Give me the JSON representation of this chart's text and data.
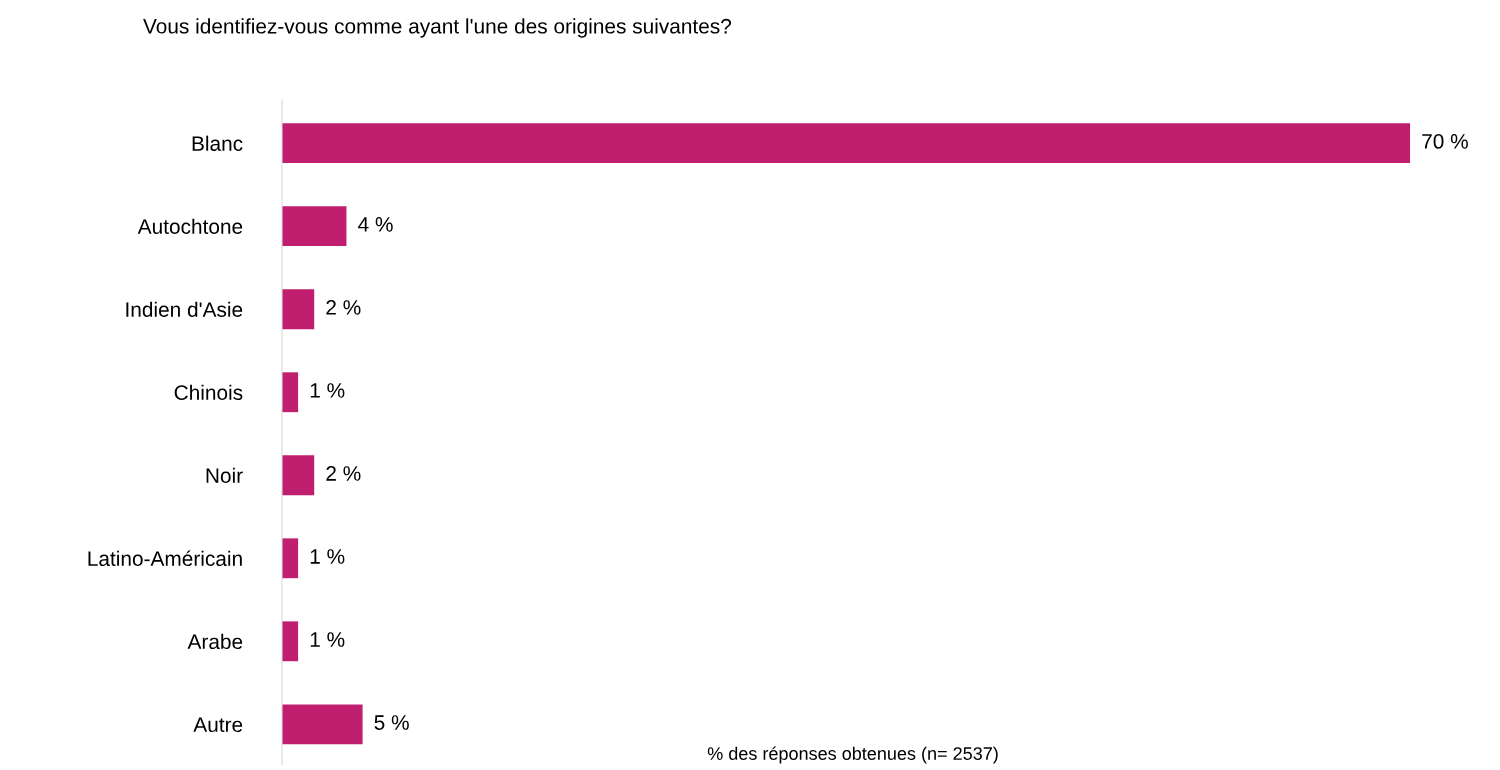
{
  "chart_data": {
    "type": "bar",
    "orientation": "horizontal",
    "title": "Vous identifiez-vous comme ayant l'une des origines suivantes?",
    "categories": [
      "Blanc",
      "Autochtone",
      "Indien d'Asie",
      "Chinois",
      "Noir",
      "Latino-Américain",
      "Arabe",
      "Autre"
    ],
    "values": [
      70,
      4,
      2,
      1,
      2,
      1,
      1,
      5
    ],
    "value_labels": [
      "70 %",
      "4 %",
      "2 %",
      "1 %",
      "2 %",
      "1 %",
      "1 %",
      "5 %"
    ],
    "color": "#c01f70",
    "annotations": [
      "% des réponses obtenues (n= 2537)"
    ],
    "grid": false,
    "legend": false
  }
}
